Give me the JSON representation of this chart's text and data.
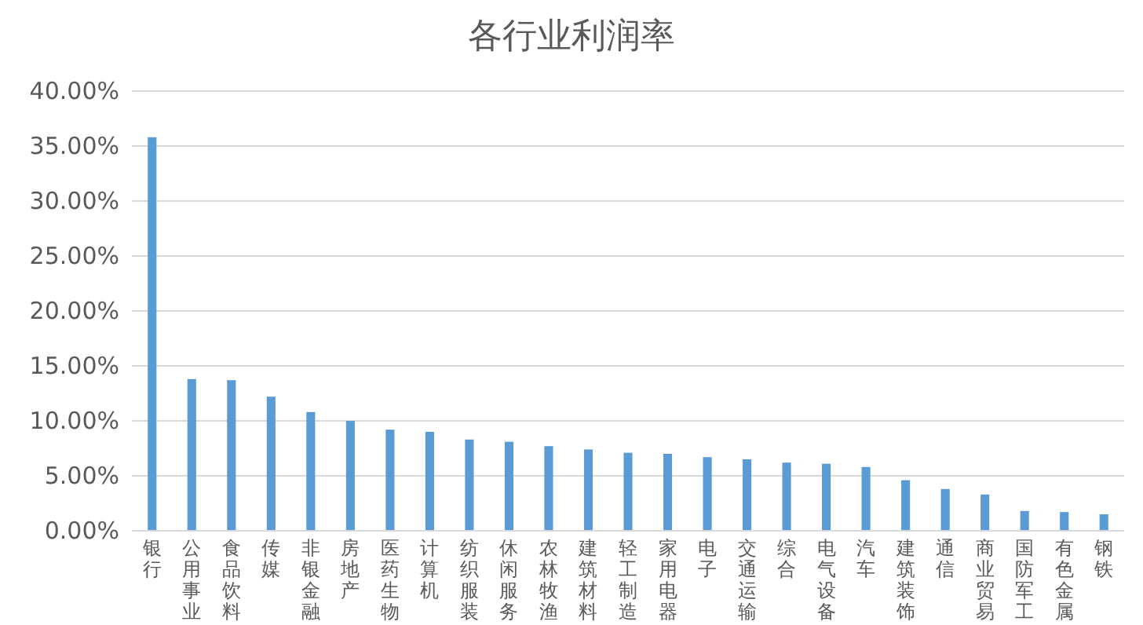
{
  "chart_data": {
    "type": "bar",
    "title": "各行业利润率",
    "categories": [
      "银行",
      "公用事业",
      "食品饮料",
      "传媒",
      "非银金融",
      "房地产",
      "医药生物",
      "计算机",
      "纺织服装",
      "休闲服务",
      "农林牧渔",
      "建筑材料",
      "轻工制造",
      "家用电器",
      "电子",
      "交通运输",
      "综合",
      "电气设备",
      "汽车",
      "建筑装饰",
      "通信",
      "商业贸易",
      "国防军工",
      "有色金属",
      "钢铁"
    ],
    "values": [
      35.8,
      13.8,
      13.7,
      12.2,
      10.8,
      10.0,
      9.2,
      9.0,
      8.3,
      8.1,
      7.7,
      7.4,
      7.1,
      7.0,
      6.7,
      6.5,
      6.2,
      6.1,
      5.8,
      4.6,
      3.8,
      3.3,
      1.8,
      1.7,
      1.5
    ],
    "color": "#5b9bd5",
    "ylim": [
      0,
      40
    ],
    "yticks": [
      {
        "value": 0,
        "label": "0.00%"
      },
      {
        "value": 5,
        "label": "5.00%"
      },
      {
        "value": 10,
        "label": "10.00%"
      },
      {
        "value": 15,
        "label": "15.00%"
      },
      {
        "value": 20,
        "label": "20.00%"
      },
      {
        "value": 25,
        "label": "25.00%"
      },
      {
        "value": 30,
        "label": "30.00%"
      },
      {
        "value": 35,
        "label": "35.00%"
      },
      {
        "value": 40,
        "label": "40.00%"
      }
    ],
    "grid": true
  }
}
